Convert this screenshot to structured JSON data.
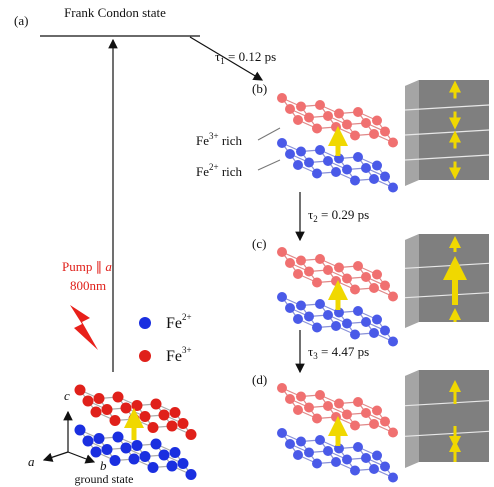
{
  "panel_labels": {
    "a": "(a)",
    "b": "(b)",
    "c": "(c)",
    "d": "(d)"
  },
  "frank_condon": "Frank Condon state",
  "transitions": [
    {
      "symbol": "τ",
      "subscript": "1",
      "text": " = 0.12 ps"
    },
    {
      "symbol": "τ",
      "subscript": "2",
      "text": " = 0.29 ps"
    },
    {
      "symbol": "τ",
      "subscript": "3",
      "text": " = 4.47 ps"
    }
  ],
  "annotations": {
    "fe3_rich": {
      "base": "Fe",
      "superscript": "3+",
      "suffix": " rich"
    },
    "fe2_rich": {
      "base": "Fe",
      "superscript": "2+",
      "suffix": " rich"
    }
  },
  "pump": {
    "label": "Pump ∥ ",
    "axis": "a",
    "wavelength": "800nm"
  },
  "legend": [
    {
      "base": "Fe",
      "superscript": "2+"
    },
    {
      "base": "Fe",
      "superscript": "3+"
    }
  ],
  "axes": {
    "c": "c",
    "a": "a",
    "b": "b"
  },
  "ground_state": "ground state"
}
